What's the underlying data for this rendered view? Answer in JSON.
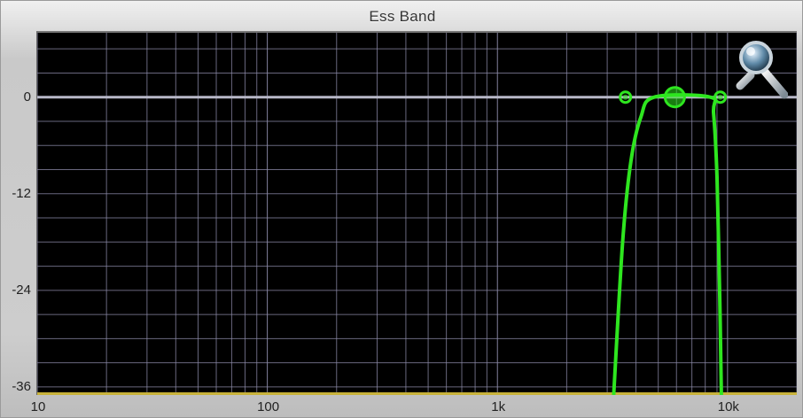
{
  "header": {
    "title": "Ess Band"
  },
  "icons": {
    "zoom": "magnifier-zoom-icon"
  },
  "colors": {
    "curve": "#2ee61f",
    "grid": "#8c8aa8",
    "zero_line": "#b8b8c8",
    "baseline": "#c8b23a"
  },
  "chart_data": {
    "type": "line",
    "xscale": "log",
    "xlim": [
      10,
      20000
    ],
    "ylim": [
      -37,
      8
    ],
    "xticks": [
      {
        "value": 10,
        "label": "10"
      },
      {
        "value": 100,
        "label": "100"
      },
      {
        "value": 1000,
        "label": "1k"
      },
      {
        "value": 10000,
        "label": "10k"
      }
    ],
    "yticks": [
      {
        "value": 0,
        "label": "0"
      },
      {
        "value": -12,
        "label": "-12"
      },
      {
        "value": -24,
        "label": "-24"
      },
      {
        "value": -36,
        "label": "-36"
      }
    ],
    "grid": true,
    "series": [
      {
        "type": "bandpass",
        "low_cutoff_hz": 3600,
        "high_cutoff_hz": 9300,
        "center_hz": 5900,
        "gain_db": 0,
        "points": [
          {
            "x": 3200,
            "y": -37
          },
          {
            "x": 3500,
            "y": -18
          },
          {
            "x": 3800,
            "y": -8
          },
          {
            "x": 4200,
            "y": -2.5
          },
          {
            "x": 4800,
            "y": 0
          },
          {
            "x": 8400,
            "y": 0
          },
          {
            "x": 8700,
            "y": -2
          },
          {
            "x": 9000,
            "y": -10
          },
          {
            "x": 9250,
            "y": -25
          },
          {
            "x": 9400,
            "y": -37
          }
        ]
      }
    ],
    "handles": [
      {
        "x": 3600,
        "y": 0,
        "role": "low-cutoff"
      },
      {
        "x": 5900,
        "y": 0,
        "role": "center"
      },
      {
        "x": 9300,
        "y": 0,
        "role": "high-cutoff"
      }
    ]
  }
}
